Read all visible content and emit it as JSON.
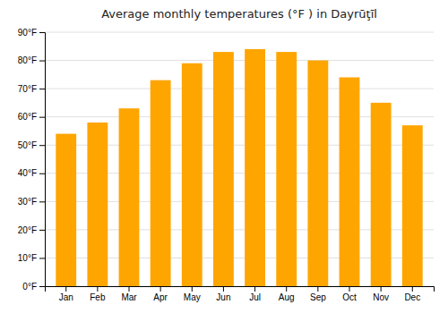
{
  "chart_data": {
    "type": "bar",
    "title": "Average monthly temperatures (°F ) in Dayrūţīl",
    "categories": [
      "Jan",
      "Feb",
      "Mar",
      "Apr",
      "May",
      "Jun",
      "Jul",
      "Aug",
      "Sep",
      "Oct",
      "Nov",
      "Dec"
    ],
    "values": [
      54,
      58,
      63,
      73,
      79,
      83,
      84,
      83,
      80,
      74,
      65,
      57
    ],
    "color": "#FFA500",
    "ylim": [
      0,
      90
    ],
    "yticks": [
      {
        "value": 0,
        "label": "0°F"
      },
      {
        "value": 10,
        "label": "10°F"
      },
      {
        "value": 20,
        "label": "20°F"
      },
      {
        "value": 30,
        "label": "30°F"
      },
      {
        "value": 40,
        "label": "40°F"
      },
      {
        "value": 50,
        "label": "50°F"
      },
      {
        "value": 60,
        "label": "60°F"
      },
      {
        "value": 70,
        "label": "70°F"
      },
      {
        "value": 80,
        "label": "80°F"
      },
      {
        "value": 90,
        "label": "90°F"
      }
    ],
    "grid": true
  }
}
